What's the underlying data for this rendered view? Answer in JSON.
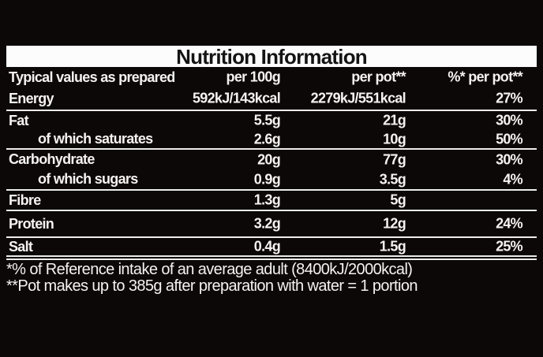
{
  "colors": {
    "background": "#0c0808",
    "panel_text": "#f5f2ef",
    "title_bar_bg": "#fcfcfc",
    "title_text": "#141414",
    "rule": "#efede9"
  },
  "title": "Nutrition Information",
  "table": {
    "header": {
      "typical_values": "Typical values as prepared",
      "per_100g": "per 100g",
      "per_pot": "per pot**",
      "pct_per_pot": "%* per pot**"
    },
    "rows": [
      {
        "label": "Energy",
        "per_100g": "592kJ/143kcal",
        "per_pot": "2279kJ/551kcal",
        "pct_per_pot": "27%",
        "indent": false,
        "group_end": true,
        "double_rule": false
      },
      {
        "label": "Fat",
        "per_100g": "5.5g",
        "per_pot": "21g",
        "pct_per_pot": "30%",
        "indent": false,
        "group_end": false,
        "double_rule": false
      },
      {
        "label": "of which saturates",
        "per_100g": "2.6g",
        "per_pot": "10g",
        "pct_per_pot": "50%",
        "indent": true,
        "group_end": true,
        "double_rule": false
      },
      {
        "label": "Carbohydrate",
        "per_100g": "20g",
        "per_pot": "77g",
        "pct_per_pot": "30%",
        "indent": false,
        "group_end": false,
        "double_rule": false
      },
      {
        "label": "of which sugars",
        "per_100g": "0.9g",
        "per_pot": "3.5g",
        "pct_per_pot": "4%",
        "indent": true,
        "group_end": true,
        "double_rule": false
      },
      {
        "label": "Fibre",
        "per_100g": "1.3g",
        "per_pot": "5g",
        "pct_per_pot": "",
        "indent": false,
        "group_end": true,
        "double_rule": false
      },
      {
        "label": "Protein",
        "per_100g": "3.2g",
        "per_pot": "12g",
        "pct_per_pot": "24%",
        "indent": false,
        "group_end": true,
        "double_rule": false
      },
      {
        "label": "Salt",
        "per_100g": "0.4g",
        "per_pot": "1.5g",
        "pct_per_pot": "25%",
        "indent": false,
        "group_end": true,
        "double_rule": true
      }
    ],
    "footnotes": [
      "*% of Reference intake of an average adult (8400kJ/2000kcal)",
      "**Pot makes up to 385g after preparation with water = 1 portion"
    ]
  }
}
